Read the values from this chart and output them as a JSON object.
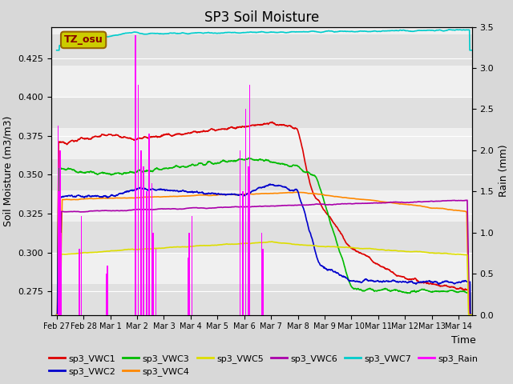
{
  "title": "SP3 Soil Moisture",
  "xlabel": "Time",
  "ylabel_left": "Soil Moisture (m3/m3)",
  "ylabel_right": "Rain (mm)",
  "ylim_left": [
    0.26,
    0.445
  ],
  "ylim_right": [
    0.0,
    3.5
  ],
  "xlim": [
    -0.2,
    15.5
  ],
  "xtick_labels": [
    "Feb 27",
    "Feb 28",
    "Mar 1",
    "Mar 2",
    "Mar 3",
    "Mar 4",
    "Mar 5",
    "Mar 6",
    "Mar 7",
    "Mar 8",
    "Mar 9",
    "Mar 10",
    "Mar 11",
    "Mar 12",
    "Mar 13",
    "Mar 14"
  ],
  "xtick_positions": [
    0,
    1,
    2,
    3,
    4,
    5,
    6,
    7,
    8,
    9,
    10,
    11,
    12,
    13,
    14,
    15
  ],
  "annotation_text": "TZ_osu",
  "colors": {
    "VWC1": "#dd0000",
    "VWC2": "#0000cc",
    "VWC3": "#00bb00",
    "VWC4": "#ff8800",
    "VWC5": "#dddd00",
    "VWC6": "#aa00aa",
    "VWC7": "#00cccc",
    "Rain": "#ff00ff"
  },
  "stripe_colors": [
    "#e0e0e0",
    "#f0f0f0"
  ],
  "band_boundaries": [
    0.26,
    0.28,
    0.3,
    0.32,
    0.34,
    0.36,
    0.38,
    0.4,
    0.42,
    0.44,
    0.445
  ],
  "fig_bg": "#d8d8d8"
}
